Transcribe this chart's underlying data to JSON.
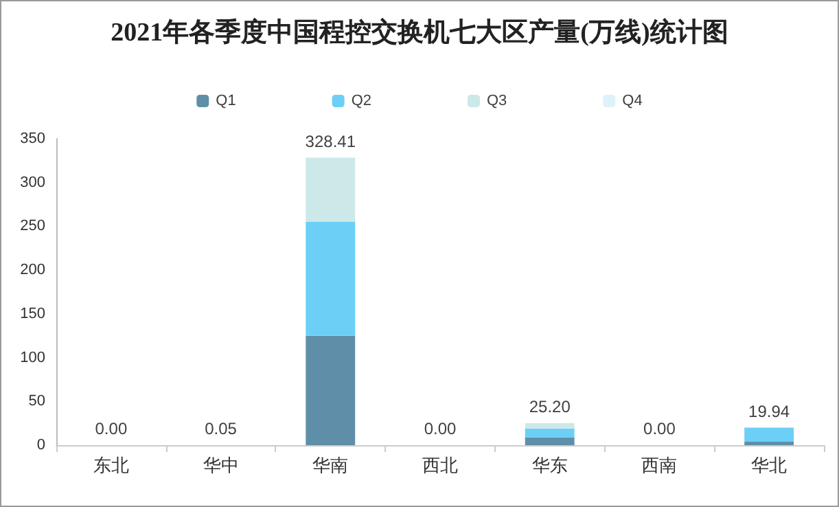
{
  "chart_data": {
    "type": "bar",
    "title": "2021年各季度中国程控交换机七大区产量(万线)统计图",
    "categories": [
      "东北",
      "华中",
      "华南",
      "西北",
      "华东",
      "西南",
      "华北"
    ],
    "stacked": true,
    "series": [
      {
        "name": "Q1",
        "color": "#5f8fa8",
        "values": [
          0,
          0.05,
          125,
          0,
          9,
          0,
          4
        ]
      },
      {
        "name": "Q2",
        "color": "#6ccff6",
        "values": [
          0,
          0,
          130,
          0,
          10,
          0,
          15.94
        ]
      },
      {
        "name": "Q3",
        "color": "#cce8e8",
        "values": [
          0,
          0,
          73.41,
          0,
          6.2,
          0,
          0
        ]
      },
      {
        "name": "Q4",
        "color": "#def2fa",
        "values": [
          0,
          0,
          0,
          0,
          0,
          0,
          0
        ]
      }
    ],
    "totals": [
      "0.00",
      "0.05",
      "328.41",
      "0.00",
      "25.20",
      "0.00",
      "19.94"
    ],
    "ylim": [
      0,
      350
    ],
    "yticks": [
      0,
      50,
      100,
      150,
      200,
      250,
      300,
      350
    ],
    "grid": false,
    "legend": "top"
  }
}
